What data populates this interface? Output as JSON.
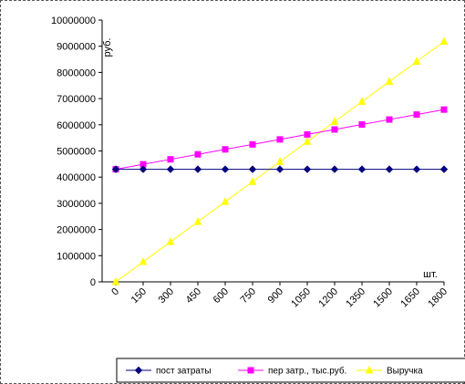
{
  "chart_data": {
    "type": "line",
    "y_unit_label": "руб.",
    "x_unit_label": "шт.",
    "x": [
      "0",
      "150",
      "300",
      "450",
      "600",
      "750",
      "900",
      "1050",
      "1200",
      "1350",
      "1500",
      "1650",
      "1800"
    ],
    "ylim": [
      0,
      10000000
    ],
    "yticks": [
      "0",
      "1000000",
      "2000000",
      "3000000",
      "4000000",
      "5000000",
      "6000000",
      "7000000",
      "8000000",
      "9000000",
      "10000000"
    ],
    "grid": false,
    "legend_position": "bottom",
    "series": [
      {
        "name": "пост затраты",
        "color": "#000080",
        "marker": "diamond",
        "values": [
          4300000,
          4300000,
          4300000,
          4300000,
          4300000,
          4300000,
          4300000,
          4300000,
          4300000,
          4300000,
          4300000,
          4300000,
          4300000
        ]
      },
      {
        "name": "пер затр., тыс.руб.",
        "color": "#FF00FF",
        "marker": "square",
        "values": [
          4300000,
          4490000,
          4680000,
          4870000,
          5060000,
          5250000,
          5440000,
          5630000,
          5820000,
          6010000,
          6200000,
          6390000,
          6580000
        ]
      },
      {
        "name": "Выручка",
        "color": "#FFFF00",
        "marker": "triangle",
        "values": [
          0,
          765000,
          1530000,
          2295000,
          3060000,
          3825000,
          4590000,
          5355000,
          6120000,
          6885000,
          7650000,
          8415000,
          9180000
        ]
      }
    ]
  }
}
